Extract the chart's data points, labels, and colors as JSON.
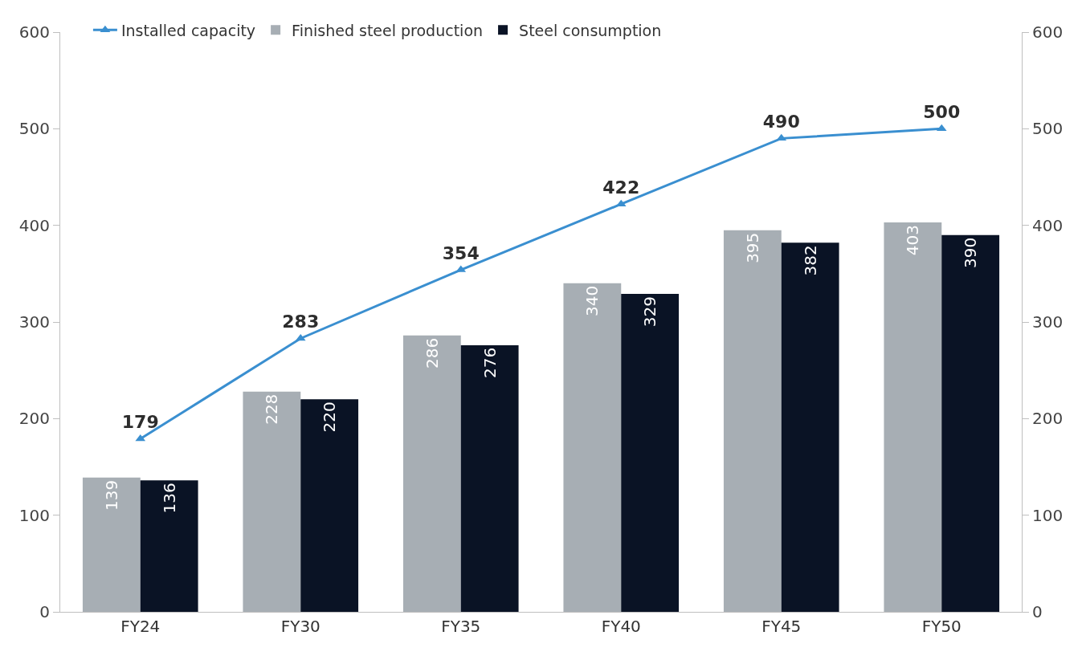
{
  "chart_data": {
    "type": "bar",
    "categories": [
      "FY24",
      "FY30",
      "FY35",
      "FY40",
      "FY45",
      "FY50"
    ],
    "series": [
      {
        "name": "Installed capacity",
        "type": "line",
        "axis": "y2",
        "color": "#3a8fd0",
        "marker": "triangle",
        "values": [
          179,
          283,
          354,
          422,
          490,
          500
        ]
      },
      {
        "name": "Finished steel production",
        "color": "#a7aeb4",
        "values": [
          139,
          228,
          286,
          340,
          395,
          403
        ]
      },
      {
        "name": "Steel consumption",
        "color": "#0a1325",
        "values": [
          136,
          220,
          276,
          329,
          382,
          390
        ]
      }
    ],
    "ylim": [
      0,
      600
    ],
    "yticks": [
      0,
      100,
      200,
      300,
      400,
      500,
      600
    ],
    "y2lim": [
      0,
      600
    ],
    "y2ticks": [
      0,
      100,
      200,
      300,
      400,
      500,
      600
    ],
    "data_labels": true,
    "grid": false,
    "legend": "top left"
  }
}
